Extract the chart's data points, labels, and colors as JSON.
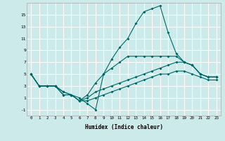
{
  "xlabel": "Humidex (Indice chaleur)",
  "bg_color": "#cceaea",
  "grid_color": "#ffffff",
  "line_color": "#006666",
  "xlim": [
    -0.5,
    23.5
  ],
  "ylim": [
    -2,
    17
  ],
  "xticks": [
    0,
    1,
    2,
    3,
    4,
    5,
    6,
    7,
    8,
    9,
    10,
    11,
    12,
    13,
    14,
    15,
    16,
    17,
    18,
    19,
    20,
    21,
    22,
    23
  ],
  "yticks": [
    -1,
    1,
    3,
    5,
    7,
    9,
    11,
    13,
    15
  ],
  "line1_x": [
    0,
    1,
    2,
    3,
    4,
    5,
    6,
    7,
    8,
    9,
    10,
    11,
    12,
    13,
    14,
    15,
    16,
    17,
    18,
    19,
    20,
    21,
    22,
    23
  ],
  "line1_y": [
    5,
    3,
    3,
    3,
    2,
    1.5,
    0.5,
    1.5,
    3.5,
    5,
    6,
    7,
    8,
    8,
    8,
    8,
    8,
    8,
    8,
    7,
    6.5,
    5,
    4.5,
    4.5
  ],
  "line2_x": [
    0,
    1,
    2,
    3,
    4,
    5,
    6,
    7,
    8,
    9,
    10,
    11,
    12,
    13,
    14,
    15,
    16,
    17,
    18,
    19,
    20,
    21,
    22,
    23
  ],
  "line2_y": [
    5,
    3,
    3,
    3,
    1.5,
    1.5,
    0.5,
    1,
    2,
    2.5,
    3,
    3.5,
    4,
    4.5,
    5,
    5.5,
    6,
    6.5,
    7,
    7,
    6.5,
    5,
    4.5,
    4.5
  ],
  "line3_x": [
    0,
    1,
    2,
    3,
    4,
    5,
    6,
    7,
    8,
    9,
    10,
    11,
    12,
    13,
    14,
    15,
    16,
    17,
    18,
    19,
    20,
    21,
    22,
    23
  ],
  "line3_y": [
    5,
    3,
    3,
    3,
    1.5,
    1.5,
    0.5,
    0.5,
    1,
    1.5,
    2,
    2.5,
    3,
    3.5,
    4,
    4.5,
    5,
    5,
    5.5,
    5.5,
    5,
    4.5,
    4,
    4
  ],
  "line4_x": [
    0,
    1,
    2,
    3,
    4,
    5,
    6,
    7,
    8,
    9,
    10,
    11,
    12,
    13,
    14,
    15,
    16,
    17,
    18,
    19,
    20,
    21,
    22,
    23
  ],
  "line4_y": [
    5,
    3,
    3,
    3,
    2,
    1.5,
    1,
    0,
    -1,
    5,
    7.5,
    9.5,
    11,
    13.5,
    15.5,
    16,
    16.5,
    12,
    8.5,
    7,
    6.5,
    5,
    4.5,
    4.5
  ]
}
